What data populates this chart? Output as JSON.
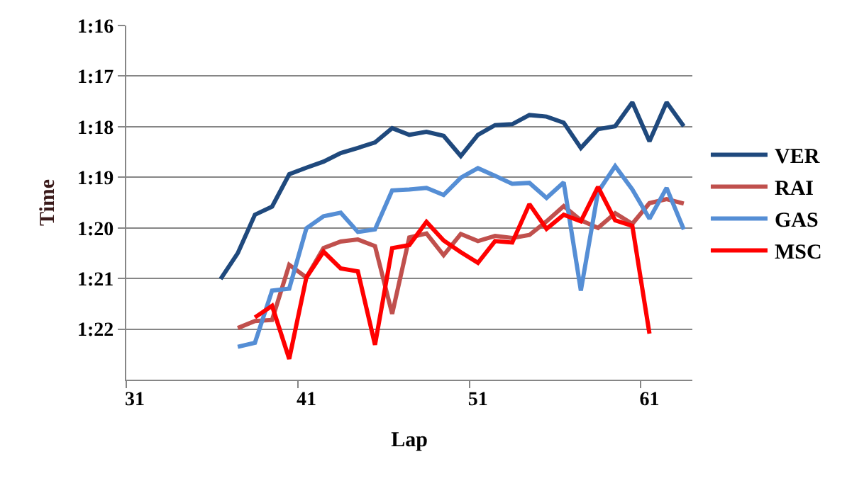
{
  "chart_data": {
    "type": "line",
    "xlabel": "Lap",
    "ylabel": "Time",
    "x": [
      36,
      37,
      38,
      39,
      40,
      41,
      42,
      43,
      44,
      45,
      46,
      47,
      48,
      49,
      50,
      51,
      52,
      53,
      54,
      55,
      56,
      57,
      58,
      59,
      60,
      61,
      62,
      63
    ],
    "xlim": [
      30.5,
      63.5
    ],
    "xticks": [
      31,
      41,
      51,
      61
    ],
    "ylim": [
      83,
      76
    ],
    "yticks": [
      {
        "value": 76,
        "label": "1:16"
      },
      {
        "value": 77,
        "label": "1:17"
      },
      {
        "value": 78,
        "label": "1:18"
      },
      {
        "value": 79,
        "label": "1:19"
      },
      {
        "value": 80,
        "label": "1:20"
      },
      {
        "value": 81,
        "label": "1:21"
      },
      {
        "value": 82,
        "label": "1:22"
      }
    ],
    "grid": "y",
    "legend": "right",
    "marker": "none",
    "line_style": "solid",
    "series": [
      {
        "name": "VER",
        "color": "#1f497d",
        "values": [
          81.01,
          80.5,
          79.74,
          79.58,
          78.94,
          78.81,
          78.69,
          78.52,
          78.42,
          78.31,
          78.03,
          78.16,
          78.1,
          78.18,
          78.58,
          78.16,
          77.97,
          77.95,
          77.77,
          77.8,
          77.92,
          78.42,
          78.05,
          77.99,
          77.52,
          78.29,
          77.52,
          77.99
        ]
      },
      {
        "name": "RAI",
        "color": "#c0504d",
        "values": [
          null,
          81.98,
          81.84,
          81.82,
          80.73,
          80.98,
          80.4,
          80.27,
          80.23,
          80.36,
          81.7,
          80.19,
          80.11,
          80.54,
          80.12,
          80.26,
          80.16,
          80.2,
          80.14,
          79.87,
          79.57,
          79.85,
          80.0,
          79.71,
          79.92,
          79.51,
          79.43,
          79.52
        ]
      },
      {
        "name": "GAS",
        "color": "#558ed5",
        "values": [
          null,
          82.35,
          82.27,
          81.24,
          81.2,
          80.01,
          79.77,
          79.7,
          80.08,
          80.03,
          79.26,
          79.24,
          79.21,
          79.35,
          79.01,
          78.82,
          78.97,
          79.13,
          79.11,
          79.41,
          79.1,
          81.24,
          79.29,
          78.78,
          79.24,
          79.82,
          79.21,
          80.03
        ]
      },
      {
        "name": "MSC",
        "color": "#ff0000",
        "values": [
          null,
          null,
          81.77,
          81.54,
          82.59,
          80.98,
          80.47,
          80.8,
          80.86,
          82.31,
          80.4,
          80.34,
          79.88,
          80.25,
          80.48,
          80.69,
          80.26,
          80.29,
          79.53,
          80.02,
          79.74,
          79.87,
          79.19,
          79.85,
          79.96,
          82.09,
          null,
          null
        ]
      }
    ]
  }
}
